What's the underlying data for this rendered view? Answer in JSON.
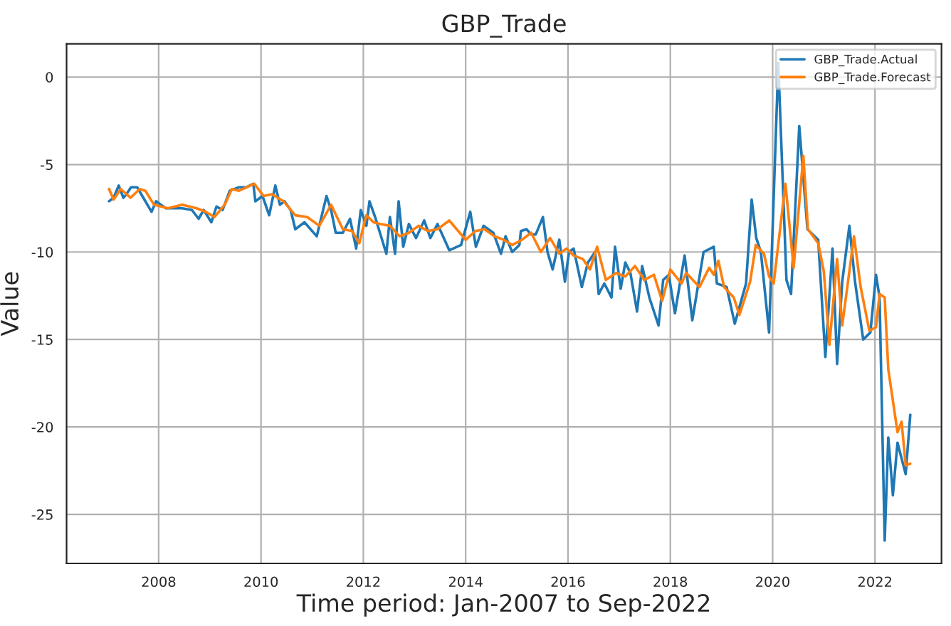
{
  "chart_data": {
    "type": "line",
    "title": "GBP_Trade",
    "xlabel": "Time period: Jan-2007 to Sep-2022",
    "ylabel": "Value",
    "xlim": [
      2006.2,
      2023.3
    ],
    "ylim": [
      -27.8,
      1.9
    ],
    "xticks": [
      2008,
      2010,
      2012,
      2014,
      2016,
      2018,
      2020,
      2022
    ],
    "yticks": [
      -25,
      -20,
      -15,
      -10,
      -5,
      0
    ],
    "grid": true,
    "legend": "top right",
    "series": [
      {
        "name": "GBP_Trade.Actual",
        "color": "#1f77b4",
        "x": [
          2007.03,
          2007.12,
          2007.22,
          2007.31,
          2007.37,
          2007.46,
          2007.58,
          2007.7,
          2007.86,
          2007.95,
          2008.14,
          2008.46,
          2008.65,
          2008.78,
          2008.88,
          2009.03,
          2009.13,
          2009.25,
          2009.39,
          2009.48,
          2009.57,
          2009.71,
          2009.85,
          2009.89,
          2010.03,
          2010.16,
          2010.28,
          2010.37,
          2010.46,
          2010.58,
          2010.67,
          2010.85,
          2011.09,
          2011.28,
          2011.37,
          2011.46,
          2011.6,
          2011.74,
          2011.86,
          2011.95,
          2012.06,
          2012.12,
          2012.23,
          2012.45,
          2012.52,
          2012.62,
          2012.69,
          2012.78,
          2012.89,
          2013.03,
          2013.19,
          2013.31,
          2013.45,
          2013.68,
          2013.91,
          2014.09,
          2014.2,
          2014.35,
          2014.54,
          2014.69,
          2014.78,
          2014.91,
          2015.05,
          2015.08,
          2015.19,
          2015.28,
          2015.37,
          2015.51,
          2015.6,
          2015.7,
          2015.83,
          2015.94,
          2016.02,
          2016.11,
          2016.27,
          2016.39,
          2016.53,
          2016.6,
          2016.71,
          2016.85,
          2016.92,
          2017.03,
          2017.12,
          2017.22,
          2017.35,
          2017.45,
          2017.59,
          2017.77,
          2017.86,
          2017.97,
          2018.09,
          2018.28,
          2018.43,
          2018.65,
          2018.85,
          2018.91,
          2019.1,
          2019.26,
          2019.48,
          2019.59,
          2019.68,
          2019.77,
          2019.93,
          2020.11,
          2020.27,
          2020.36,
          2020.52,
          2020.68,
          2020.89,
          2021.03,
          2021.17,
          2021.26,
          2021.36,
          2021.5,
          2021.61,
          2021.77,
          2021.91,
          2022.02,
          2022.09,
          2022.19,
          2022.26,
          2022.35,
          2022.44,
          2022.6,
          2022.69
        ],
        "values": [
          -7.1,
          -6.9,
          -6.2,
          -6.9,
          -6.7,
          -6.3,
          -6.3,
          -6.9,
          -7.7,
          -7.1,
          -7.5,
          -7.5,
          -7.6,
          -8.1,
          -7.6,
          -8.3,
          -7.4,
          -7.6,
          -6.5,
          -6.4,
          -6.3,
          -6.3,
          -6.1,
          -7.1,
          -6.8,
          -7.9,
          -6.2,
          -7.3,
          -7.1,
          -7.6,
          -8.7,
          -8.3,
          -9.1,
          -6.8,
          -7.6,
          -8.9,
          -8.9,
          -8.1,
          -9.8,
          -7.6,
          -8.5,
          -7.1,
          -8.0,
          -10.1,
          -8.0,
          -10.1,
          -7.1,
          -9.7,
          -8.4,
          -9.2,
          -8.2,
          -9.2,
          -8.4,
          -9.9,
          -9.6,
          -7.7,
          -9.7,
          -8.5,
          -8.9,
          -10.1,
          -9.1,
          -10.0,
          -9.6,
          -8.8,
          -8.7,
          -9.0,
          -9.0,
          -8.0,
          -10.0,
          -11.0,
          -9.3,
          -11.7,
          -10.0,
          -9.8,
          -12.0,
          -10.6,
          -10.0,
          -12.4,
          -11.8,
          -12.6,
          -9.7,
          -12.1,
          -10.6,
          -11.2,
          -13.4,
          -10.8,
          -12.6,
          -14.2,
          -11.6,
          -11.3,
          -13.5,
          -10.2,
          -13.9,
          -10.0,
          -9.7,
          -11.8,
          -12.0,
          -14.1,
          -11.8,
          -7.0,
          -9.2,
          -10.0,
          -14.6,
          0.8,
          -11.6,
          -12.4,
          -2.8,
          -8.7,
          -9.3,
          -16.0,
          -9.8,
          -16.4,
          -11.7,
          -8.5,
          -11.7,
          -15.0,
          -14.6,
          -11.3,
          -12.6,
          -26.5,
          -20.6,
          -23.9,
          -20.9,
          -22.7,
          -19.3
        ]
      },
      {
        "name": "GBP_Trade.Forecast",
        "color": "#ff7f0e",
        "x": [
          2007.03,
          2007.12,
          2007.26,
          2007.45,
          2007.63,
          2007.74,
          2007.91,
          2008.18,
          2008.46,
          2008.74,
          2008.92,
          2009.09,
          2009.29,
          2009.43,
          2009.57,
          2009.87,
          2010.05,
          2010.22,
          2010.44,
          2010.67,
          2010.9,
          2011.14,
          2011.37,
          2011.6,
          2011.78,
          2011.92,
          2012.06,
          2012.2,
          2012.34,
          2012.52,
          2012.71,
          2012.89,
          2013.08,
          2013.26,
          2013.45,
          2013.68,
          2014.0,
          2014.19,
          2014.37,
          2014.56,
          2014.74,
          2014.91,
          2015.1,
          2015.28,
          2015.47,
          2015.65,
          2015.83,
          2015.97,
          2016.11,
          2016.29,
          2016.43,
          2016.57,
          2016.74,
          2016.94,
          2017.12,
          2017.31,
          2017.49,
          2017.68,
          2017.84,
          2018.0,
          2018.22,
          2018.31,
          2018.57,
          2018.76,
          2018.85,
          2018.94,
          2019.05,
          2019.24,
          2019.35,
          2019.56,
          2019.67,
          2019.83,
          2019.93,
          2020.02,
          2020.25,
          2020.41,
          2020.6,
          2020.69,
          2020.89,
          2021.0,
          2021.11,
          2021.26,
          2021.36,
          2021.59,
          2021.72,
          2021.89,
          2022.02,
          2022.09,
          2022.19,
          2022.26,
          2022.44,
          2022.52,
          2022.6,
          2022.69
        ],
        "values": [
          -6.4,
          -7.0,
          -6.4,
          -6.9,
          -6.4,
          -6.5,
          -7.3,
          -7.5,
          -7.3,
          -7.5,
          -7.7,
          -8.0,
          -7.3,
          -6.4,
          -6.5,
          -6.1,
          -6.8,
          -6.7,
          -7.1,
          -7.9,
          -8.0,
          -8.5,
          -7.3,
          -8.7,
          -8.8,
          -9.5,
          -7.9,
          -8.3,
          -8.4,
          -8.5,
          -9.1,
          -8.9,
          -8.5,
          -8.8,
          -8.7,
          -8.2,
          -9.3,
          -8.8,
          -8.7,
          -9.1,
          -9.3,
          -9.6,
          -9.3,
          -8.9,
          -10.0,
          -9.2,
          -10.1,
          -9.8,
          -10.2,
          -10.4,
          -11.0,
          -9.7,
          -11.6,
          -11.2,
          -11.4,
          -10.8,
          -11.6,
          -11.3,
          -12.8,
          -11.0,
          -11.8,
          -11.2,
          -12.0,
          -10.9,
          -11.3,
          -10.5,
          -12.0,
          -12.6,
          -13.6,
          -11.7,
          -9.6,
          -10.1,
          -11.4,
          -11.8,
          -6.1,
          -10.9,
          -4.5,
          -8.7,
          -9.5,
          -11.1,
          -15.3,
          -10.4,
          -14.2,
          -9.1,
          -12.0,
          -14.5,
          -14.3,
          -12.4,
          -12.6,
          -16.7,
          -20.3,
          -19.7,
          -22.2,
          -22.1
        ]
      }
    ]
  }
}
